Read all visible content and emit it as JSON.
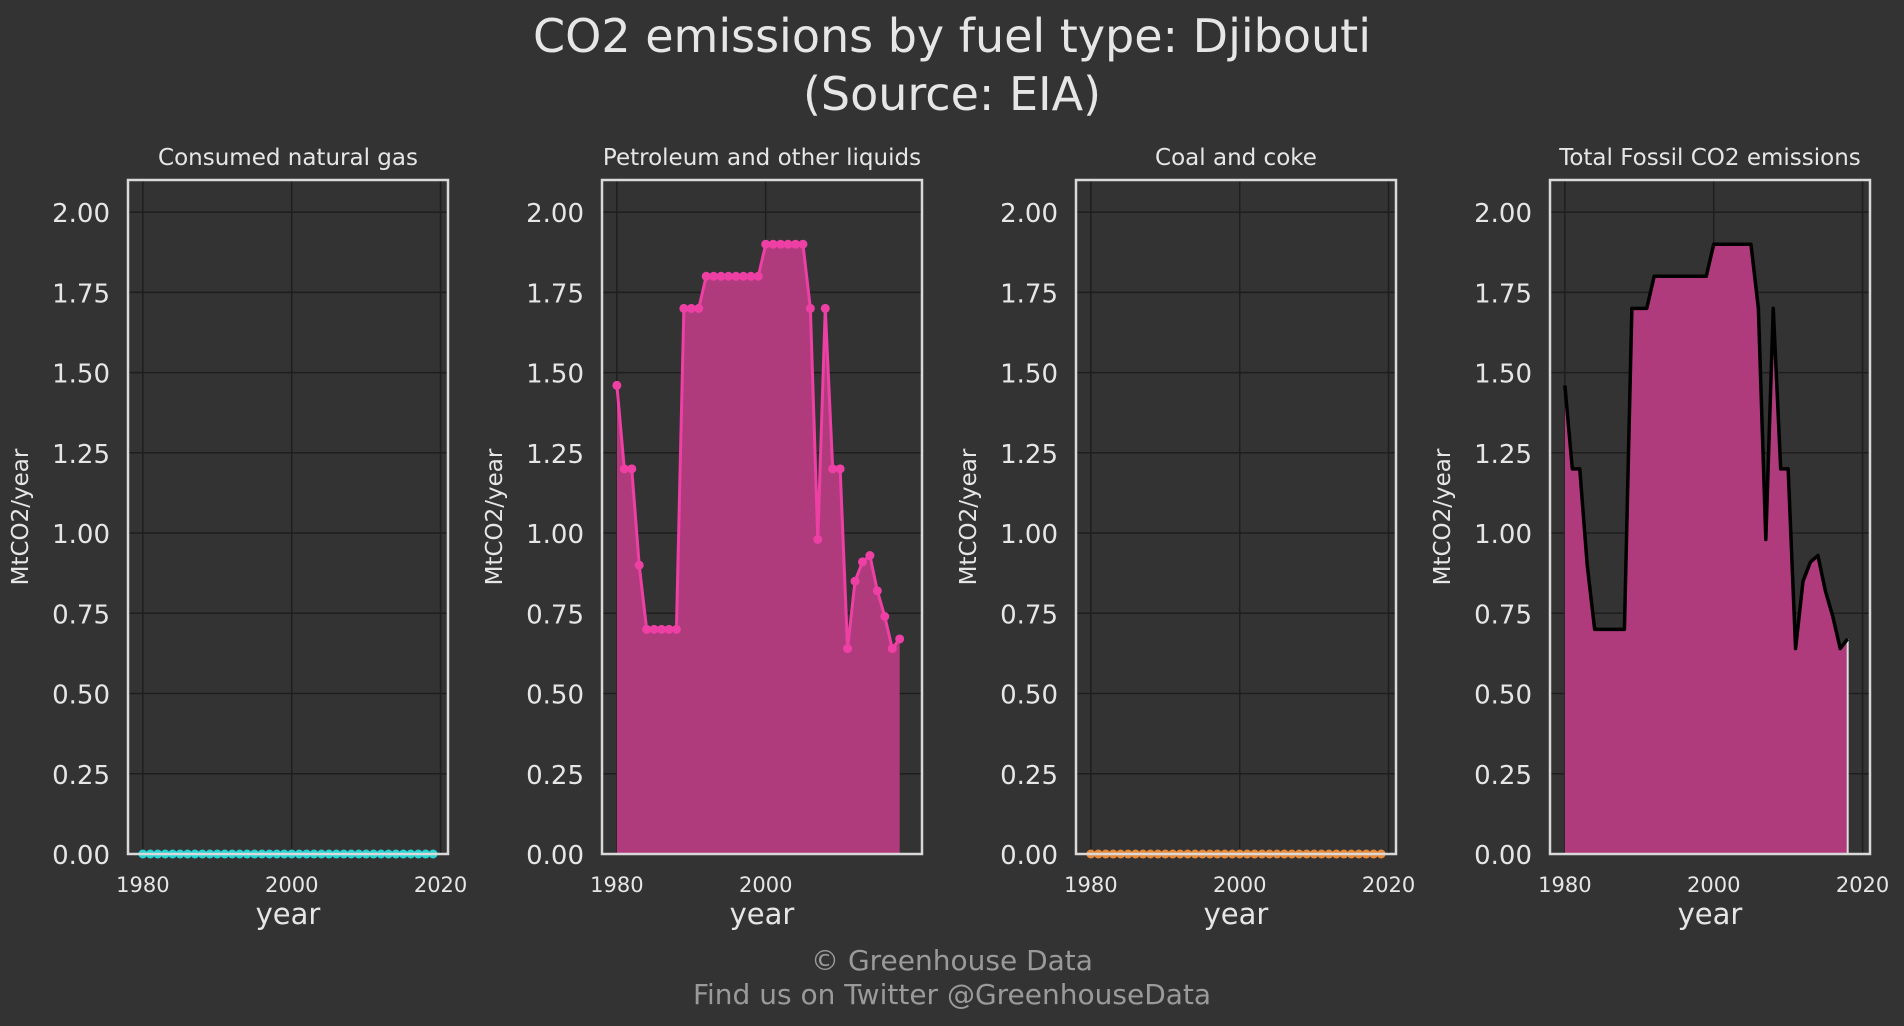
{
  "title_line1": "CO2 emissions by fuel type: Djibouti",
  "title_line2": "(Source: EIA)",
  "footer_line1": "© Greenhouse Data",
  "footer_line2": "Find us on Twitter @GreenhouseData",
  "colors": {
    "background": "#333333",
    "panel_border": "#d9d9d9",
    "grid": "#1e1e1e",
    "text": "#e6e6e6",
    "footer_text": "#9a9a9a",
    "natural_gas": "#2ad4d4",
    "petroleum": "#ee3fa5",
    "petroleum_fill": "#b03b7c",
    "coal": "#e8893a",
    "total_line": "#000000",
    "total_fill": "#b03b7c"
  },
  "chart_data": [
    {
      "type": "area",
      "title": "Consumed natural gas",
      "xlabel": "year",
      "ylabel": "MtCO2/year",
      "xticks": [
        "1980",
        "2000",
        "2020"
      ],
      "yticks": [
        "0.00",
        "0.25",
        "0.50",
        "0.75",
        "1.00",
        "1.25",
        "1.50",
        "1.75",
        "2.00"
      ],
      "xlim": [
        1978,
        2021
      ],
      "ylim": [
        0,
        2.1
      ],
      "markers": true,
      "x": [
        1980,
        1981,
        1982,
        1983,
        1984,
        1985,
        1986,
        1987,
        1988,
        1989,
        1990,
        1991,
        1992,
        1993,
        1994,
        1995,
        1996,
        1997,
        1998,
        1999,
        2000,
        2001,
        2002,
        2003,
        2004,
        2005,
        2006,
        2007,
        2008,
        2009,
        2010,
        2011,
        2012,
        2013,
        2014,
        2015,
        2016,
        2017,
        2018,
        2019
      ],
      "values": [
        0,
        0,
        0,
        0,
        0,
        0,
        0,
        0,
        0,
        0,
        0,
        0,
        0,
        0,
        0,
        0,
        0,
        0,
        0,
        0,
        0,
        0,
        0,
        0,
        0,
        0,
        0,
        0,
        0,
        0,
        0,
        0,
        0,
        0,
        0,
        0,
        0,
        0,
        0,
        0
      ]
    },
    {
      "type": "area",
      "title": "Petroleum and other liquids",
      "xlabel": "year",
      "ylabel": "MtCO2/year",
      "xticks": [
        "1980",
        "2000"
      ],
      "yticks": [
        "0.00",
        "0.25",
        "0.50",
        "0.75",
        "1.00",
        "1.25",
        "1.50",
        "1.75",
        "2.00"
      ],
      "xlim": [
        1978,
        2021
      ],
      "ylim": [
        0,
        2.1
      ],
      "markers": true,
      "x": [
        1980,
        1981,
        1982,
        1983,
        1984,
        1985,
        1986,
        1987,
        1988,
        1989,
        1990,
        1991,
        1992,
        1993,
        1994,
        1995,
        1996,
        1997,
        1998,
        1999,
        2000,
        2001,
        2002,
        2003,
        2004,
        2005,
        2006,
        2007,
        2008,
        2009,
        2010,
        2011,
        2012,
        2013,
        2014,
        2015,
        2016,
        2017,
        2018
      ],
      "values": [
        1.46,
        1.2,
        1.2,
        0.9,
        0.7,
        0.7,
        0.7,
        0.7,
        0.7,
        1.7,
        1.7,
        1.7,
        1.8,
        1.8,
        1.8,
        1.8,
        1.8,
        1.8,
        1.8,
        1.8,
        1.9,
        1.9,
        1.9,
        1.9,
        1.9,
        1.9,
        1.7,
        0.98,
        1.7,
        1.2,
        1.2,
        0.64,
        0.85,
        0.91,
        0.93,
        0.82,
        0.74,
        0.64,
        0.67
      ]
    },
    {
      "type": "area",
      "title": "Coal and coke",
      "xlabel": "year",
      "ylabel": "MtCO2/year",
      "xticks": [
        "1980",
        "2000",
        "2020"
      ],
      "yticks": [
        "0.00",
        "0.25",
        "0.50",
        "0.75",
        "1.00",
        "1.25",
        "1.50",
        "1.75",
        "2.00"
      ],
      "xlim": [
        1978,
        2021
      ],
      "ylim": [
        0,
        2.1
      ],
      "markers": true,
      "x": [
        1980,
        1981,
        1982,
        1983,
        1984,
        1985,
        1986,
        1987,
        1988,
        1989,
        1990,
        1991,
        1992,
        1993,
        1994,
        1995,
        1996,
        1997,
        1998,
        1999,
        2000,
        2001,
        2002,
        2003,
        2004,
        2005,
        2006,
        2007,
        2008,
        2009,
        2010,
        2011,
        2012,
        2013,
        2014,
        2015,
        2016,
        2017,
        2018,
        2019
      ],
      "values": [
        0,
        0,
        0,
        0,
        0,
        0,
        0,
        0,
        0,
        0,
        0,
        0,
        0,
        0,
        0,
        0,
        0,
        0,
        0,
        0,
        0,
        0,
        0,
        0,
        0,
        0,
        0,
        0,
        0,
        0,
        0,
        0,
        0,
        0,
        0,
        0,
        0,
        0,
        0,
        0
      ]
    },
    {
      "type": "area",
      "title": "Total Fossil CO2 emissions",
      "xlabel": "year",
      "ylabel": "MtCO2/year",
      "xticks": [
        "1980",
        "2000",
        "2020"
      ],
      "yticks": [
        "0.00",
        "0.25",
        "0.50",
        "0.75",
        "1.00",
        "1.25",
        "1.50",
        "1.75",
        "2.00"
      ],
      "xlim": [
        1978,
        2021
      ],
      "ylim": [
        0,
        2.1
      ],
      "markers": false,
      "x": [
        1980,
        1981,
        1982,
        1983,
        1984,
        1985,
        1986,
        1987,
        1988,
        1989,
        1990,
        1991,
        1992,
        1993,
        1994,
        1995,
        1996,
        1997,
        1998,
        1999,
        2000,
        2001,
        2002,
        2003,
        2004,
        2005,
        2006,
        2007,
        2008,
        2009,
        2010,
        2011,
        2012,
        2013,
        2014,
        2015,
        2016,
        2017,
        2018
      ],
      "values": [
        1.46,
        1.2,
        1.2,
        0.9,
        0.7,
        0.7,
        0.7,
        0.7,
        0.7,
        1.7,
        1.7,
        1.7,
        1.8,
        1.8,
        1.8,
        1.8,
        1.8,
        1.8,
        1.8,
        1.8,
        1.9,
        1.9,
        1.9,
        1.9,
        1.9,
        1.9,
        1.7,
        0.98,
        1.7,
        1.2,
        1.2,
        0.64,
        0.85,
        0.91,
        0.93,
        0.82,
        0.74,
        0.64,
        0.67
      ]
    }
  ]
}
